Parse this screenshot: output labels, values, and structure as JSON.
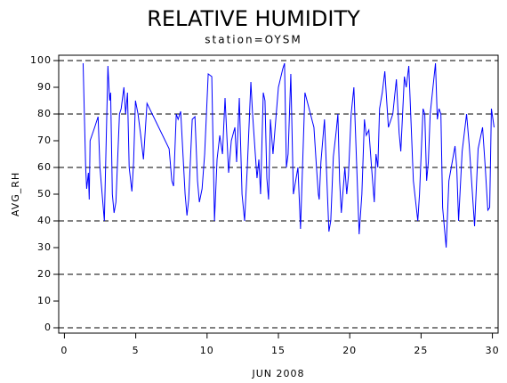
{
  "chart_data": {
    "type": "line",
    "title": "RELATIVE HUMIDITY",
    "subtitle": "station=OYSM",
    "x_label": "JUN 2008",
    "y_label": "AVG_RH",
    "xlim": [
      -0.4,
      30.4
    ],
    "xticks": [
      0,
      5,
      10,
      15,
      20,
      25,
      30
    ],
    "ylim": [
      -2,
      102
    ],
    "yticks": [
      0,
      10,
      20,
      30,
      40,
      50,
      60,
      70,
      80,
      90,
      100
    ],
    "ygrid": [
      0,
      20,
      40,
      60,
      80,
      100
    ],
    "grid_style": "dashed",
    "series": [
      {
        "color": "#0000ff",
        "x": [
          1.31,
          1.49,
          1.56,
          1.68,
          1.74,
          1.8,
          2.12,
          2.36,
          2.49,
          2.8,
          3.05,
          3.17,
          3.24,
          3.36,
          3.48,
          3.61,
          3.86,
          3.98,
          4.17,
          4.29,
          4.42,
          4.54,
          4.73,
          4.85,
          4.98,
          5.16,
          5.35,
          5.54,
          5.79,
          7.34,
          7.53,
          7.65,
          7.84,
          7.97,
          8.15,
          8.46,
          8.59,
          8.71,
          8.96,
          9.15,
          9.33,
          9.46,
          9.65,
          9.83,
          10.08,
          10.33,
          10.52,
          10.7,
          10.89,
          11.08,
          11.26,
          11.51,
          11.7,
          11.95,
          12.07,
          12.26,
          12.45,
          12.63,
          12.82,
          13.07,
          13.19,
          13.38,
          13.5,
          13.63,
          13.75,
          13.94,
          14.06,
          14.19,
          14.31,
          14.44,
          14.62,
          15.0,
          15.31,
          15.43,
          15.56,
          15.68,
          15.87,
          16.05,
          16.37,
          16.55,
          16.86,
          17.49,
          17.67,
          17.8,
          17.86,
          17.98,
          18.23,
          18.54,
          18.67,
          18.85,
          19.04,
          19.17,
          19.29,
          19.41,
          19.66,
          19.79,
          19.91,
          20.1,
          20.29,
          20.66,
          20.85,
          21.03,
          21.16,
          21.34,
          21.53,
          21.72,
          21.84,
          21.97,
          22.09,
          22.28,
          22.46,
          22.71,
          23.02,
          23.27,
          23.46,
          23.58,
          23.83,
          23.96,
          24.14,
          24.46,
          24.77,
          24.89,
          25.14,
          25.26,
          25.39,
          25.51,
          25.64,
          26.01,
          26.14,
          26.26,
          26.39,
          26.51,
          26.76,
          26.95,
          27.38,
          27.5,
          27.63,
          27.88,
          28.19,
          28.38,
          28.75,
          29.0,
          29.31,
          29.5,
          29.68,
          29.81,
          29.93,
          30.12
        ],
        "values": [
          99,
          60,
          52,
          58,
          48,
          70,
          75,
          79,
          60,
          40,
          98,
          85,
          88,
          50,
          43,
          47,
          80,
          82,
          90,
          80,
          88,
          60,
          51,
          62,
          85,
          80,
          72,
          63,
          84,
          67,
          55,
          53,
          80,
          78,
          81,
          50,
          42,
          48,
          78,
          79,
          55,
          47,
          52,
          65,
          95,
          94,
          40,
          63,
          72,
          65,
          86,
          58,
          70,
          75,
          62,
          86,
          50,
          40,
          60,
          92,
          80,
          65,
          56,
          63,
          50,
          88,
          85,
          56,
          48,
          78,
          65,
          90,
          97,
          99,
          60,
          65,
          95,
          50,
          60,
          37,
          88,
          75,
          60,
          50,
          48,
          62,
          78,
          36,
          40,
          64,
          73,
          80,
          55,
          43,
          60,
          50,
          57,
          80,
          90,
          35,
          50,
          78,
          72,
          74,
          60,
          47,
          65,
          60,
          82,
          88,
          96,
          75,
          80,
          93,
          73,
          66,
          94,
          90,
          98,
          55,
          40,
          50,
          82,
          80,
          55,
          62,
          80,
          99,
          78,
          82,
          80,
          45,
          30,
          55,
          68,
          60,
          40,
          66,
          80,
          68,
          38,
          67,
          75,
          60,
          44,
          45,
          82,
          75
        ]
      }
    ]
  }
}
